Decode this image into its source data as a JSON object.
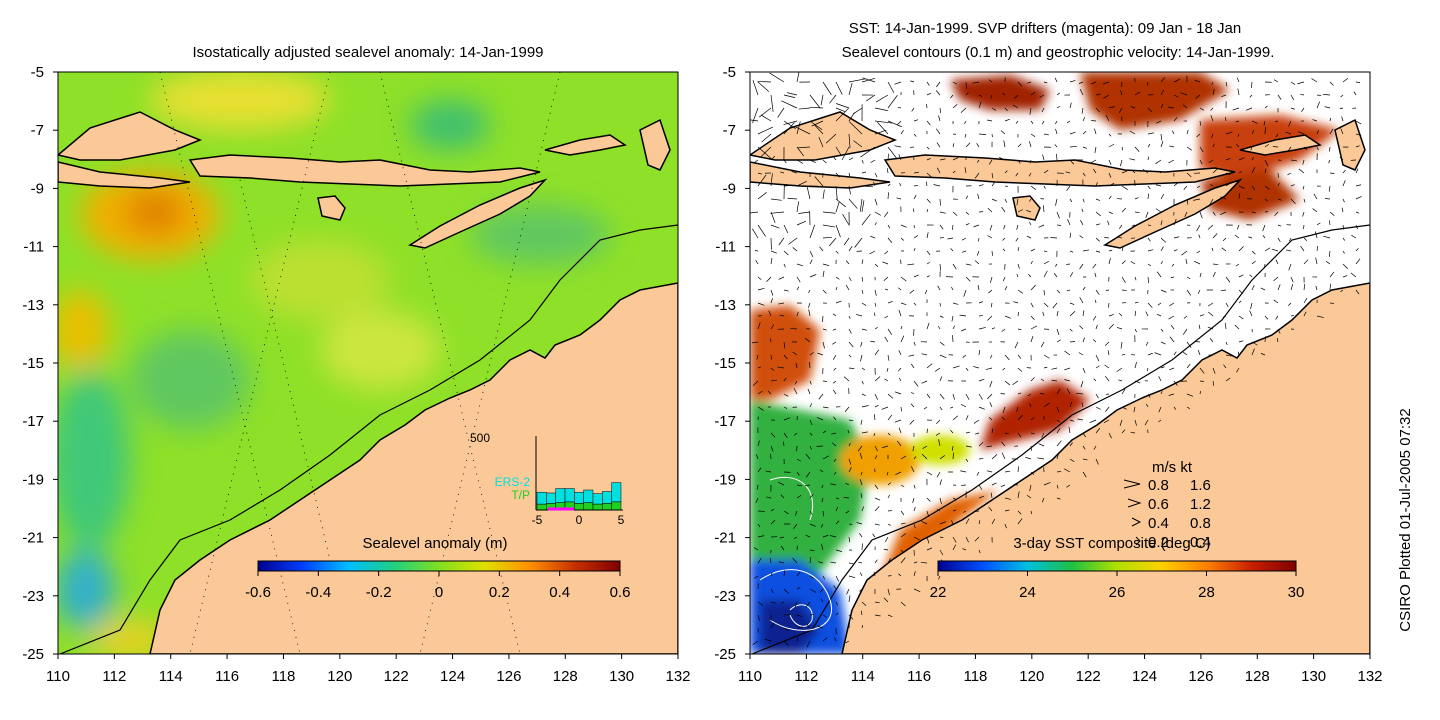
{
  "left_panel": {
    "title": "Isostatically adjusted sealevel anomaly: 14-Jan-1999",
    "colorbar": {
      "label": "Sealevel anomaly (m)",
      "ticks": [
        "-0.6",
        "-0.4",
        "-0.2",
        "0",
        "0.2",
        "0.4",
        "0.6"
      ],
      "range": [
        -0.6,
        0.6
      ],
      "colors": [
        "#00008f",
        "#0040ff",
        "#00bfff",
        "#20d080",
        "#80e020",
        "#e0e000",
        "#ff9000",
        "#c83000",
        "#800000"
      ]
    },
    "inset_histogram": {
      "y_max_label": "500",
      "x_ticks": [
        "-5",
        "0",
        "5"
      ],
      "series": [
        {
          "name": "ERS-2",
          "color": "#00e0e0",
          "values": [
            80,
            70,
            95,
            90,
            75,
            85,
            70,
            80,
            130
          ]
        },
        {
          "name": "T/P",
          "color": "#20d020",
          "values": [
            40,
            45,
            50,
            55,
            45,
            50,
            40,
            45,
            55
          ]
        }
      ],
      "y_range": [
        0,
        500
      ],
      "x_range": [
        -5,
        5
      ]
    }
  },
  "right_panel": {
    "title_line1": "SST: 14-Jan-1999. SVP drifters (magenta): 09 Jan - 18 Jan",
    "title_line2": "Sealevel contours (0.1 m) and geostrophic velocity: 14-Jan-1999.",
    "colorbar": {
      "label": "3-day SST composite (deg C)",
      "ticks": [
        "22",
        "24",
        "26",
        "28",
        "30"
      ],
      "range": [
        22,
        30
      ],
      "colors": [
        "#00008f",
        "#0050ff",
        "#00c0e0",
        "#20c040",
        "#b0e000",
        "#ffd000",
        "#ff8000",
        "#c82000",
        "#800000"
      ]
    },
    "velocity_legend": {
      "header": "m/s  kt",
      "rows": [
        {
          "ms": "0.8",
          "kt": "1.6"
        },
        {
          "ms": "0.6",
          "kt": "1.2"
        },
        {
          "ms": "0.4",
          "kt": "0.8"
        },
        {
          "ms": "0.2",
          "kt": "0.4"
        }
      ]
    }
  },
  "axes": {
    "x_ticks": [
      "110",
      "112",
      "114",
      "116",
      "118",
      "120",
      "122",
      "124",
      "126",
      "128",
      "130",
      "132"
    ],
    "y_ticks": [
      "-5",
      "-7",
      "-9",
      "-11",
      "-13",
      "-15",
      "-17",
      "-19",
      "-21",
      "-23",
      "-25"
    ],
    "lon_range": [
      110,
      132
    ],
    "lat_range": [
      -25,
      -5
    ]
  },
  "credit": "CSIRO Plotted 01-Jul-2005 07:32",
  "colors": {
    "land": "#fbc898",
    "sea_green": "#88e020"
  }
}
